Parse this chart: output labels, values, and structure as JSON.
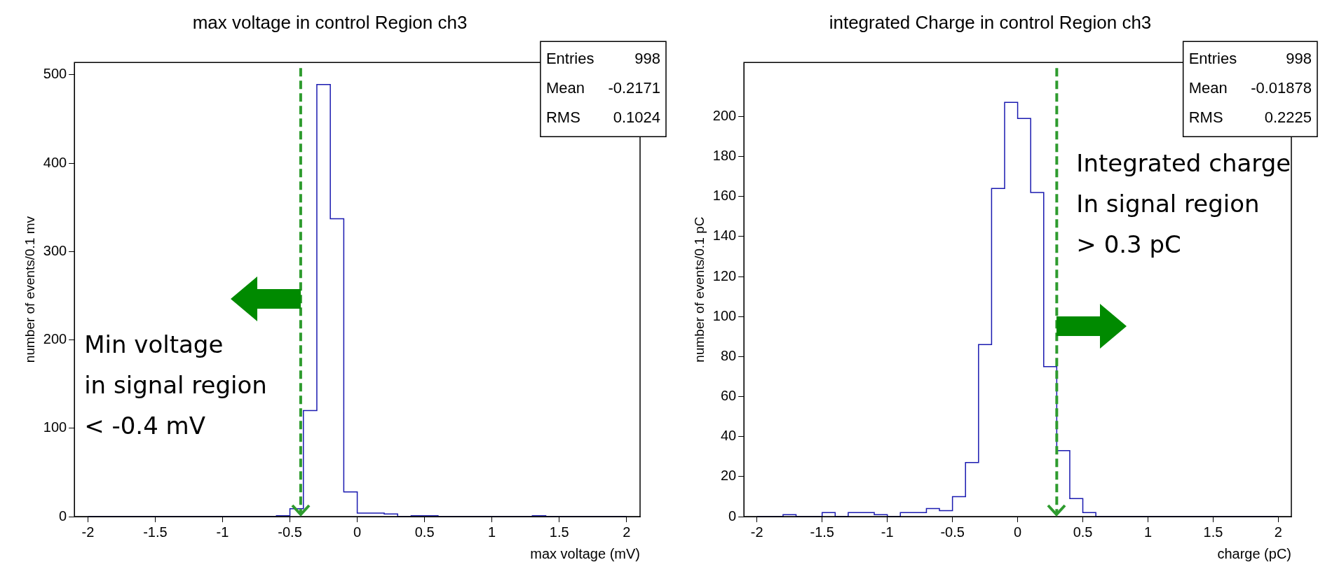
{
  "chart_data": [
    {
      "type": "histogram",
      "title": "max voltage in control Region ch3",
      "xlabel": "max voltage (mV)",
      "ylabel": "number of events/0.1 mv",
      "color": "#1a1ab0",
      "bins": [
        -2.0,
        -1.9,
        -1.8,
        -1.7,
        -1.6,
        -1.5,
        -1.4,
        -1.3,
        -1.2,
        -1.1,
        -1.0,
        -0.9,
        -0.8,
        -0.7,
        -0.6,
        -0.5,
        -0.4,
        -0.3,
        -0.2,
        -0.1,
        0.0,
        0.1,
        0.2,
        0.3,
        0.4,
        0.5,
        0.6,
        0.7,
        0.8,
        0.9,
        1.0,
        1.1,
        1.2,
        1.3,
        1.4,
        1.5,
        1.6,
        1.7,
        1.8,
        1.9,
        2.0
      ],
      "values": [
        0,
        0,
        0,
        0,
        0,
        0,
        0,
        0,
        0,
        0,
        0,
        0,
        0,
        0,
        1,
        9,
        120,
        489,
        337,
        28,
        4,
        4,
        3,
        0,
        1,
        1,
        0,
        0,
        0,
        0,
        0,
        0,
        0,
        1,
        0,
        0,
        0,
        0,
        0,
        0
      ],
      "xlim": [
        -2.1,
        2.1
      ],
      "xticks": [
        -2,
        -1.5,
        -1,
        -0.5,
        0,
        0.5,
        1,
        1.5,
        2
      ],
      "ylim": [
        0,
        514
      ],
      "yticks": [
        0,
        100,
        200,
        300,
        400,
        500
      ],
      "ref_lines": [
        {
          "axis": "x",
          "value": -0.42,
          "label": "Min voltage\nin signal region\n< -0.4 mV",
          "color": "#2e9b2e",
          "line_style": "dashed"
        }
      ],
      "annotations": [
        "Entries",
        "998",
        "Mean",
        "-0.2171",
        "RMS",
        "0.1024"
      ]
    },
    {
      "type": "histogram",
      "title": "integrated Charge in control Region ch3",
      "xlabel": "charge (pC)",
      "ylabel": "number of events/0.1 pC",
      "color": "#1a1ab0",
      "bins": [
        -2.0,
        -1.9,
        -1.8,
        -1.7,
        -1.6,
        -1.5,
        -1.4,
        -1.3,
        -1.2,
        -1.1,
        -1.0,
        -0.9,
        -0.8,
        -0.7,
        -0.6,
        -0.5,
        -0.4,
        -0.3,
        -0.2,
        -0.1,
        0.0,
        0.1,
        0.2,
        0.3,
        0.4,
        0.5,
        0.6,
        0.7,
        0.8,
        0.9,
        1.0,
        1.1,
        1.2,
        1.3,
        1.4,
        1.5,
        1.6,
        1.7,
        1.8,
        1.9,
        2.0
      ],
      "values": [
        0,
        0,
        1,
        0,
        0,
        2,
        0,
        2,
        2,
        1,
        0,
        2,
        2,
        4,
        3,
        10,
        27,
        86,
        164,
        207,
        199,
        162,
        75,
        33,
        9,
        2,
        0,
        0,
        0,
        0,
        0,
        0,
        0,
        0,
        0,
        0,
        0,
        0,
        0,
        0
      ],
      "xlim": [
        -2.1,
        2.1
      ],
      "xticks": [
        -2,
        -1.5,
        -1,
        -0.5,
        0,
        0.5,
        1,
        1.5,
        2
      ],
      "ylim": [
        0,
        227
      ],
      "yticks": [
        0,
        20,
        40,
        60,
        80,
        100,
        120,
        140,
        160,
        180,
        200
      ],
      "ref_lines": [
        {
          "axis": "x",
          "value": 0.3,
          "label": "Integrated charge\nIn signal region\n> 0.3 pC",
          "color": "#2e9b2e",
          "line_style": "dashed"
        }
      ],
      "annotations": [
        "Entries",
        "998",
        "Mean",
        "-0.01878",
        "RMS",
        "0.2225"
      ]
    }
  ]
}
